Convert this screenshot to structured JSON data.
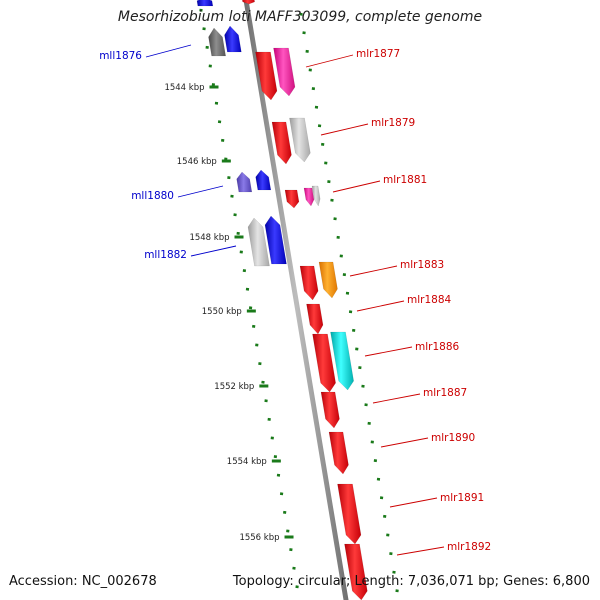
{
  "title": "Mesorhizobium loti MAFF303099, complete genome",
  "footer": {
    "accession": "Accession: NC_002678",
    "topology": "Topology: circular; Length: 7,036,071 bp; Genes: 6,800"
  },
  "colors": {
    "forward": "#e8000b",
    "reverse": "#0000ee",
    "backbone": "#888888",
    "ticks": "#1a7a1a",
    "label_forward": "#cc0000",
    "label_reverse": "#0000cc"
  },
  "ruler": [
    {
      "label": "1544 kbp"
    },
    {
      "label": "1546 kbp"
    },
    {
      "label": "1548 kbp"
    },
    {
      "label": "1550 kbp"
    },
    {
      "label": "1552 kbp"
    },
    {
      "label": "1554 kbp"
    },
    {
      "label": "1556 kbp"
    }
  ],
  "genes": [
    {
      "name": "mll1876",
      "strand": "reverse"
    },
    {
      "name": "mlr1877",
      "strand": "forward"
    },
    {
      "name": "mlr1879",
      "strand": "forward"
    },
    {
      "name": "mll1880",
      "strand": "reverse"
    },
    {
      "name": "mlr1881",
      "strand": "forward"
    },
    {
      "name": "mll1882",
      "strand": "reverse"
    },
    {
      "name": "mlr1883",
      "strand": "forward"
    },
    {
      "name": "mlr1884",
      "strand": "forward"
    },
    {
      "name": "mlr1886",
      "strand": "forward"
    },
    {
      "name": "mlr1887",
      "strand": "forward"
    },
    {
      "name": "mlr1890",
      "strand": "forward"
    },
    {
      "name": "mlr1891",
      "strand": "forward"
    },
    {
      "name": "mlr1892",
      "strand": "forward"
    }
  ]
}
